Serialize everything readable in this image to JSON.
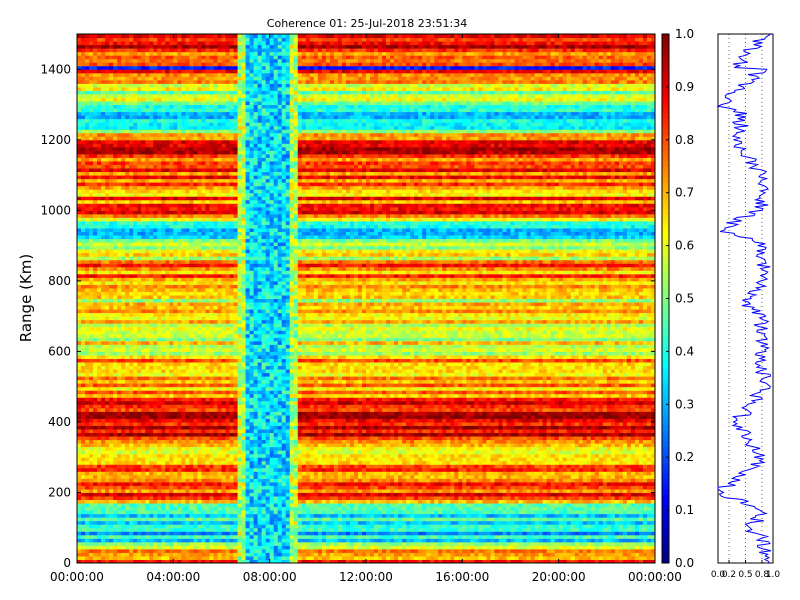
{
  "chart_data": [
    {
      "type": "heatmap",
      "title": "Coherence 01: 25-Jul-2018 23:51:34",
      "xlabel": "",
      "ylabel": "Range (Km)",
      "x_tick_labels": [
        "00:00:00",
        "04:00:00",
        "08:00:00",
        "12:00:00",
        "16:00:00",
        "20:00:00",
        "00:00:00"
      ],
      "x_range_hours": [
        0,
        24
      ],
      "y_ticks": [
        0,
        200,
        400,
        600,
        800,
        1000,
        1200,
        1400
      ],
      "ylim": [
        0,
        1500
      ],
      "colormap": "jet",
      "color_range": [
        0.0,
        1.0
      ],
      "colorbar_ticks": [
        0.0,
        0.1,
        0.2,
        0.3,
        0.4,
        0.5,
        0.6,
        0.7,
        0.8,
        0.9,
        1.0
      ],
      "low_coherence_window_hours": [
        6.7,
        9.1
      ],
      "low_coherence_value": 0.35,
      "background_value": 0.82,
      "row_profile_breakpoints": [
        {
          "range": 0,
          "value": 0.85
        },
        {
          "range": 80,
          "value": 0.3
        },
        {
          "range": 160,
          "value": 0.45
        },
        {
          "range": 200,
          "value": 0.85
        },
        {
          "range": 300,
          "value": 0.65
        },
        {
          "range": 400,
          "value": 0.92
        },
        {
          "range": 520,
          "value": 0.7
        },
        {
          "range": 700,
          "value": 0.62
        },
        {
          "range": 850,
          "value": 0.75
        },
        {
          "range": 945,
          "value": 0.3
        },
        {
          "range": 1000,
          "value": 0.85
        },
        {
          "range": 1060,
          "value": 0.72
        },
        {
          "range": 1170,
          "value": 0.9
        },
        {
          "range": 1270,
          "value": 0.3
        },
        {
          "range": 1400,
          "value": 0.85
        },
        {
          "range": 1500,
          "value": 0.8
        }
      ],
      "notable_bands": [
        {
          "range": 85,
          "value": 0.25
        },
        {
          "range": 160,
          "value": 0.45
        },
        {
          "range": 300,
          "value": 0.65
        },
        {
          "range": 940,
          "value": 0.3
        },
        {
          "range": 1270,
          "value": 0.3
        },
        {
          "range": 1405,
          "value": 0.15
        }
      ]
    },
    {
      "type": "line",
      "title": "",
      "xlabel": "",
      "ylabel": "",
      "xlim": [
        0.0,
        1.0
      ],
      "x_tick_labels": [
        "0.0",
        "0.2",
        "0.5",
        "0.8",
        "1.0"
      ],
      "ylim": [
        0,
        1500
      ],
      "color": "#0000ff",
      "series": [
        {
          "range": [
            0,
            75,
            85,
            150,
            200,
            270,
            300,
            400,
            500,
            600,
            700,
            740,
            800,
            900,
            945,
            1000,
            1060,
            1100,
            1200,
            1270,
            1300,
            1400,
            1405,
            1500
          ],
          "values": [
            0.85,
            0.8,
            0.55,
            0.8,
            0.02,
            0.6,
            0.8,
            0.35,
            0.85,
            0.8,
            0.8,
            0.45,
            0.85,
            0.85,
            0.02,
            0.75,
            0.85,
            0.8,
            0.35,
            0.45,
            0.05,
            0.8,
            0.35,
            0.85
          ]
        }
      ]
    }
  ]
}
